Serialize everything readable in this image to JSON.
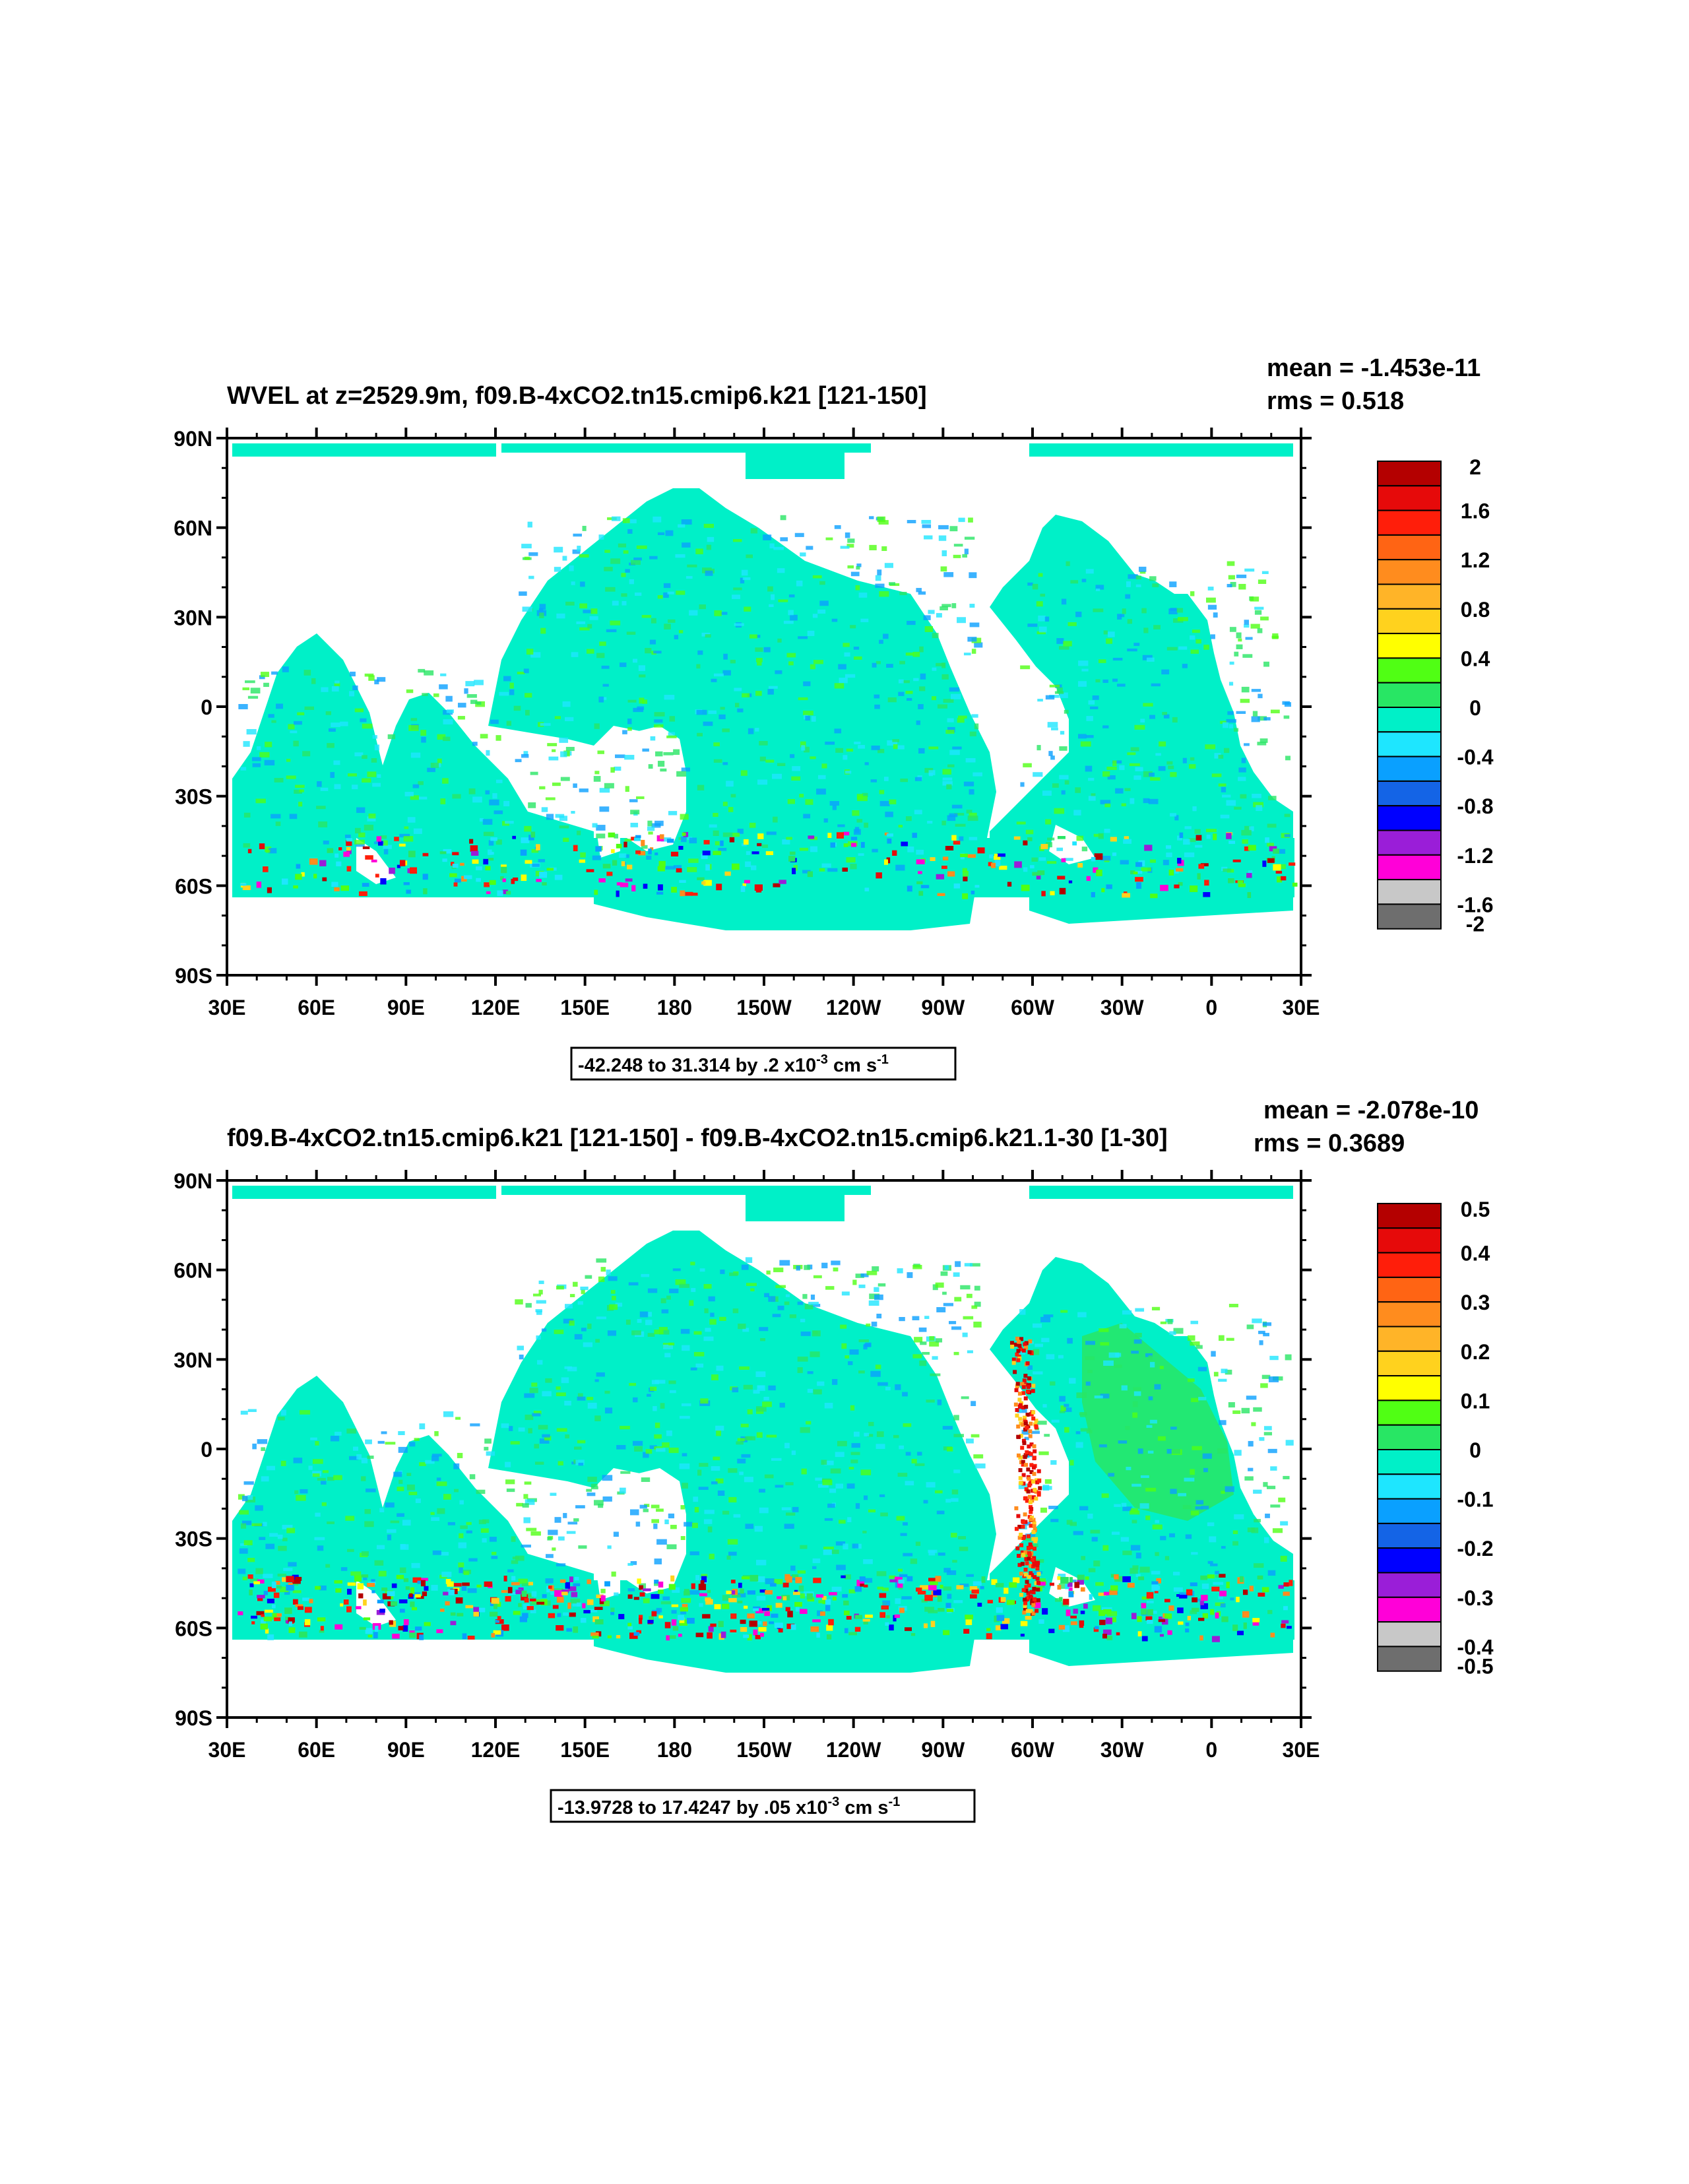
{
  "colors": {
    "ocean_base": "#00f0c8",
    "land": "#ffffff",
    "frame": "#000000",
    "palette": [
      "#6e6e6e",
      "#c8c8c8",
      "#ff00d8",
      "#9a1ed8",
      "#0000ff",
      "#1464e6",
      "#0aa0ff",
      "#1ee6ff",
      "#00f0c8",
      "#28e664",
      "#50ff14",
      "#ffff00",
      "#ffd21e",
      "#ffb428",
      "#ff8c1e",
      "#ff6414",
      "#ff1e0a",
      "#e60a0a",
      "#b40000"
    ]
  },
  "panels": [
    {
      "title": "WVEL at z=2529.9m, f09.B-4xCO2.tn15.cmip6.k21 [121-150]",
      "mean_text": "mean = -1.453e-11",
      "rms_text": "rms = 0.518",
      "range_text": "-42.248 to 31.314 by .2 x10",
      "range_exp": "-3",
      "range_units": " cm s",
      "range_units_exp": "-1",
      "colorbar_labels": [
        "2",
        "1.6",
        "1.2",
        "0.8",
        "0.4",
        "0",
        "-0.4",
        "-0.8",
        "-1.2",
        "-1.6",
        "-2"
      ],
      "anomaly_level": 0.35
    },
    {
      "title": "f09.B-4xCO2.tn15.cmip6.k21 [121-150] - f09.B-4xCO2.tn15.cmip6.k21.1-30 [1-30]",
      "mean_text": "mean = -2.078e-10",
      "rms_text": "rms = 0.3689",
      "range_text": "-13.9728 to 17.4247 by .05 x10",
      "range_exp": "-3",
      "range_units": " cm s",
      "range_units_exp": "-1",
      "colorbar_labels": [
        "0.5",
        "0.4",
        "0.3",
        "0.2",
        "0.1",
        "0",
        "-0.1",
        "-0.2",
        "-0.3",
        "-0.4",
        "-0.5"
      ],
      "anomaly_level": 0.65
    }
  ],
  "y_axis_labels": [
    "90N",
    "60N",
    "30N",
    "0",
    "30S",
    "60S",
    "90S"
  ],
  "x_axis_labels": [
    "30E",
    "60E",
    "90E",
    "120E",
    "150E",
    "180",
    "150W",
    "120W",
    "90W",
    "60W",
    "30W",
    "0",
    "30E"
  ],
  "icons": {
    "map_plot": "contour-map-icon",
    "colorbar": "color-legend-icon"
  }
}
